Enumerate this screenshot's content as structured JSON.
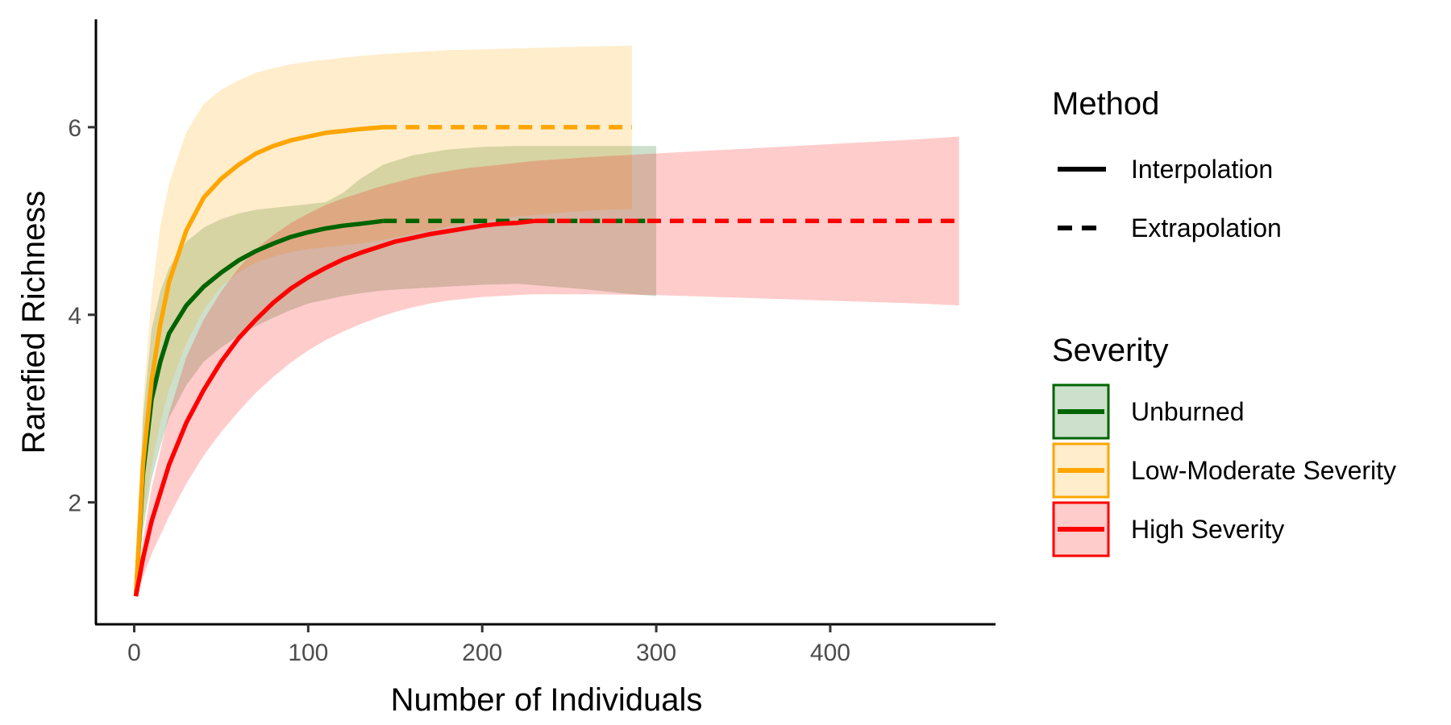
{
  "chart_data": {
    "type": "line",
    "title": "",
    "xlabel": "Number of Individuals",
    "ylabel": "Rarefied Richness",
    "xlim": [
      -22,
      495
    ],
    "ylim": [
      0.7,
      7.15
    ],
    "x_ticks": [
      0,
      100,
      200,
      300,
      400
    ],
    "y_ticks": [
      2,
      4,
      6
    ],
    "grid": false,
    "legend_placement": "right",
    "legend": {
      "method": {
        "title": "Method",
        "items": [
          {
            "label": "Interpolation",
            "style": "solid"
          },
          {
            "label": "Extrapolation",
            "style": "dashed"
          }
        ]
      },
      "severity": {
        "title": "Severity",
        "items": [
          {
            "label": "Unburned",
            "color": "#006400"
          },
          {
            "label": "Low-Moderate Severity",
            "color": "#FFA500"
          },
          {
            "label": "High Severity",
            "color": "#FF0000"
          }
        ]
      }
    },
    "series": [
      {
        "name": "Unburned",
        "color": "#006400",
        "observed_x": 143,
        "x": [
          1,
          5,
          10,
          15,
          20,
          30,
          40,
          50,
          60,
          70,
          80,
          90,
          100,
          110,
          120,
          130,
          143,
          160,
          180,
          200,
          220,
          240,
          260,
          280,
          300
        ],
        "y": [
          1.0,
          2.3,
          3.1,
          3.5,
          3.8,
          4.1,
          4.3,
          4.45,
          4.58,
          4.68,
          4.76,
          4.83,
          4.88,
          4.92,
          4.95,
          4.97,
          5.0,
          5.0,
          5.0,
          5.0,
          5.0,
          5.0,
          5.0,
          5.0,
          5.0
        ],
        "lower": [
          1.0,
          1.7,
          2.25,
          2.6,
          2.9,
          3.25,
          3.5,
          3.65,
          3.78,
          3.88,
          3.97,
          4.05,
          4.12,
          4.16,
          4.2,
          4.23,
          4.26,
          4.28,
          4.3,
          4.32,
          4.33,
          4.3,
          4.27,
          4.23,
          4.2
        ],
        "upper": [
          1.0,
          2.9,
          3.85,
          4.25,
          4.5,
          4.78,
          4.93,
          5.02,
          5.08,
          5.12,
          5.14,
          5.16,
          5.18,
          5.2,
          5.3,
          5.45,
          5.6,
          5.7,
          5.76,
          5.79,
          5.8,
          5.8,
          5.8,
          5.8,
          5.8
        ]
      },
      {
        "name": "Low-Moderate Severity",
        "color": "#FFA500",
        "observed_x": 143,
        "x": [
          1,
          5,
          10,
          15,
          20,
          30,
          40,
          50,
          60,
          70,
          80,
          90,
          100,
          110,
          120,
          130,
          143,
          160,
          180,
          200,
          220,
          240,
          260,
          286
        ],
        "y": [
          1.0,
          2.4,
          3.3,
          3.9,
          4.35,
          4.9,
          5.25,
          5.45,
          5.6,
          5.72,
          5.8,
          5.86,
          5.9,
          5.94,
          5.96,
          5.98,
          6.0,
          6.0,
          6.0,
          6.0,
          6.0,
          6.0,
          6.0,
          6.0
        ],
        "lower": [
          1.0,
          1.75,
          2.4,
          2.85,
          3.2,
          3.7,
          4.05,
          4.3,
          4.45,
          4.56,
          4.62,
          4.67,
          4.7,
          4.72,
          4.74,
          4.76,
          4.8,
          4.86,
          4.94,
          5.0,
          5.05,
          5.08,
          5.11,
          5.13
        ],
        "upper": [
          1.0,
          3.05,
          4.2,
          4.95,
          5.4,
          5.95,
          6.25,
          6.4,
          6.5,
          6.58,
          6.63,
          6.67,
          6.7,
          6.72,
          6.74,
          6.76,
          6.78,
          6.8,
          6.82,
          6.83,
          6.84,
          6.85,
          6.86,
          6.87
        ]
      },
      {
        "name": "High Severity",
        "color": "#FF0000",
        "observed_x": 230,
        "x": [
          1,
          5,
          10,
          15,
          20,
          30,
          40,
          50,
          60,
          70,
          80,
          90,
          100,
          110,
          120,
          130,
          140,
          150,
          160,
          170,
          180,
          190,
          200,
          210,
          220,
          230,
          260,
          300,
          350,
          400,
          450,
          474
        ],
        "y": [
          1.0,
          1.4,
          1.8,
          2.1,
          2.4,
          2.85,
          3.2,
          3.5,
          3.75,
          3.95,
          4.13,
          4.28,
          4.4,
          4.5,
          4.59,
          4.66,
          4.72,
          4.78,
          4.82,
          4.86,
          4.89,
          4.92,
          4.95,
          4.97,
          4.98,
          5.0,
          5.0,
          5.0,
          5.0,
          5.0,
          5.0,
          5.0
        ],
        "lower": [
          1.0,
          1.2,
          1.45,
          1.65,
          1.85,
          2.2,
          2.5,
          2.75,
          2.97,
          3.17,
          3.34,
          3.49,
          3.62,
          3.73,
          3.82,
          3.9,
          3.97,
          4.03,
          4.08,
          4.12,
          4.15,
          4.17,
          4.19,
          4.2,
          4.21,
          4.22,
          4.22,
          4.21,
          4.18,
          4.15,
          4.12,
          4.1
        ],
        "upper": [
          1.0,
          1.6,
          2.15,
          2.55,
          2.95,
          3.55,
          3.95,
          4.25,
          4.5,
          4.7,
          4.85,
          4.98,
          5.08,
          5.17,
          5.24,
          5.3,
          5.36,
          5.41,
          5.46,
          5.5,
          5.53,
          5.56,
          5.58,
          5.6,
          5.62,
          5.64,
          5.68,
          5.72,
          5.77,
          5.82,
          5.87,
          5.9
        ]
      }
    ]
  }
}
